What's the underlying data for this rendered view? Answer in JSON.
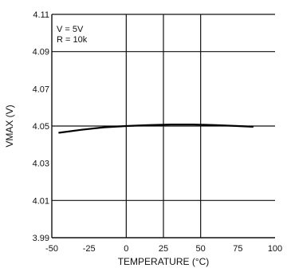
{
  "chart_data": {
    "type": "line",
    "xlabel": "TEMPERATURE (°C)",
    "ylabel": "VMAX (V)",
    "xlim": [
      -50,
      100
    ],
    "ylim": [
      3.99,
      4.11
    ],
    "x_ticks": [
      -50,
      -25,
      0,
      25,
      50,
      75,
      100
    ],
    "x_tick_labels": [
      "-50",
      "-25",
      "0",
      "25",
      "50",
      "75",
      "100"
    ],
    "y_ticks": [
      3.99,
      4.01,
      4.03,
      4.05,
      4.07,
      4.09,
      4.11
    ],
    "y_tick_labels": [
      "3.99",
      "4.01",
      "4.03",
      "4.05",
      "4.07",
      "4.09",
      "4.11"
    ],
    "annotations": [
      "V = 5V",
      "R = 10k"
    ],
    "grid": true,
    "series": [
      {
        "values": [
          [
            -45,
            4.0464
          ],
          [
            -30,
            4.048
          ],
          [
            -15,
            4.0493
          ],
          [
            0,
            4.05
          ],
          [
            15,
            4.0505
          ],
          [
            30,
            4.0508
          ],
          [
            45,
            4.0508
          ],
          [
            60,
            4.0505
          ],
          [
            75,
            4.05
          ],
          [
            85,
            4.0496
          ]
        ]
      }
    ]
  }
}
